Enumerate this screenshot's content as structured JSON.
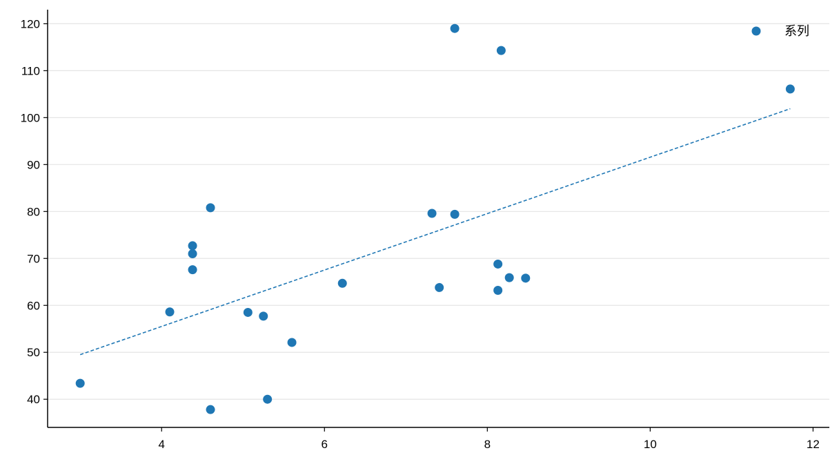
{
  "chart_data": {
    "type": "scatter",
    "title": "",
    "xlabel": "",
    "ylabel": "",
    "xlim": [
      2.6,
      12.2
    ],
    "ylim": [
      34,
      123
    ],
    "x_ticks": [
      4,
      6,
      8,
      10,
      12
    ],
    "y_ticks": [
      40,
      50,
      60,
      70,
      80,
      90,
      100,
      110,
      120
    ],
    "grid": {
      "x": false,
      "y": true
    },
    "legend": {
      "position": "top-right",
      "entries": [
        "系列"
      ]
    },
    "colors": {
      "points": "#1f77b4",
      "trendline": "#1f77b4",
      "grid": "#e5e5e5",
      "axis": "#000000"
    },
    "series": [
      {
        "name": "系列",
        "points": [
          {
            "x": 3.0,
            "y": 43.4
          },
          {
            "x": 4.1,
            "y": 58.6
          },
          {
            "x": 4.38,
            "y": 72.7
          },
          {
            "x": 4.38,
            "y": 71.0
          },
          {
            "x": 4.38,
            "y": 67.6
          },
          {
            "x": 4.6,
            "y": 80.8
          },
          {
            "x": 4.6,
            "y": 37.8
          },
          {
            "x": 5.06,
            "y": 58.5
          },
          {
            "x": 5.25,
            "y": 57.7
          },
          {
            "x": 5.3,
            "y": 40.0
          },
          {
            "x": 5.6,
            "y": 52.1
          },
          {
            "x": 6.22,
            "y": 64.7
          },
          {
            "x": 7.32,
            "y": 79.6
          },
          {
            "x": 7.6,
            "y": 79.4
          },
          {
            "x": 7.6,
            "y": 119.0
          },
          {
            "x": 7.41,
            "y": 63.8
          },
          {
            "x": 8.13,
            "y": 68.8
          },
          {
            "x": 8.13,
            "y": 63.2
          },
          {
            "x": 8.17,
            "y": 114.3
          },
          {
            "x": 8.27,
            "y": 65.9
          },
          {
            "x": 8.47,
            "y": 65.8
          },
          {
            "x": 11.72,
            "y": 106.1
          }
        ]
      }
    ],
    "trendline": {
      "style": "dashed",
      "x": [
        3.0,
        11.72
      ],
      "y": [
        49.5,
        101.9
      ]
    }
  }
}
